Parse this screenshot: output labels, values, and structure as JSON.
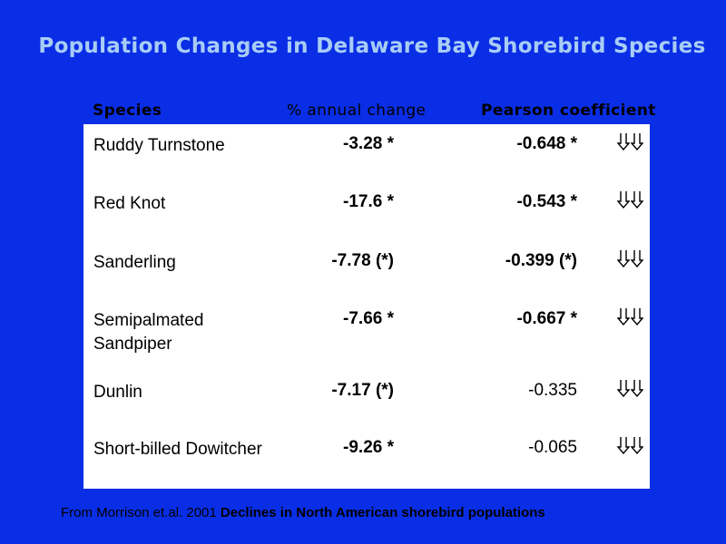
{
  "title": "Population Changes in Delaware Bay Shorebird Species",
  "headers": {
    "species": "Species",
    "change": "% annual change",
    "pearson": "Pearson coefficient"
  },
  "rows": [
    {
      "species": "Ruddy Turnstone",
      "change": "-3.28 *",
      "pearson": "-0.648 *",
      "pearson_bold": true
    },
    {
      "species": "Red Knot",
      "change": "-17.6 *",
      "pearson": "-0.543 *",
      "pearson_bold": true
    },
    {
      "species": "Sanderling",
      "change": "-7.78 (*)",
      "pearson": "-0.399 (*)",
      "pearson_bold": true
    },
    {
      "species": "Semipalmated Sandpiper",
      "change": "-7.66 *",
      "pearson": "-0.667 *",
      "pearson_bold": true
    },
    {
      "species": "Dunlin",
      "change": "-7.17 (*)",
      "pearson": "-0.335",
      "pearson_bold": false
    },
    {
      "species": "Short-billed Dowitcher",
      "change": "-9.26 *",
      "pearson": "-0.065",
      "pearson_bold": false
    }
  ],
  "trend_icon": "double-down-arrow-icon",
  "footer": {
    "prefix": "From Morrison et.al. 2001 ",
    "publication": "Declines in North American shorebird populations"
  },
  "colors": {
    "background": "#0a2ee6",
    "title": "#a8cdf5",
    "panel": "#ffffff"
  }
}
